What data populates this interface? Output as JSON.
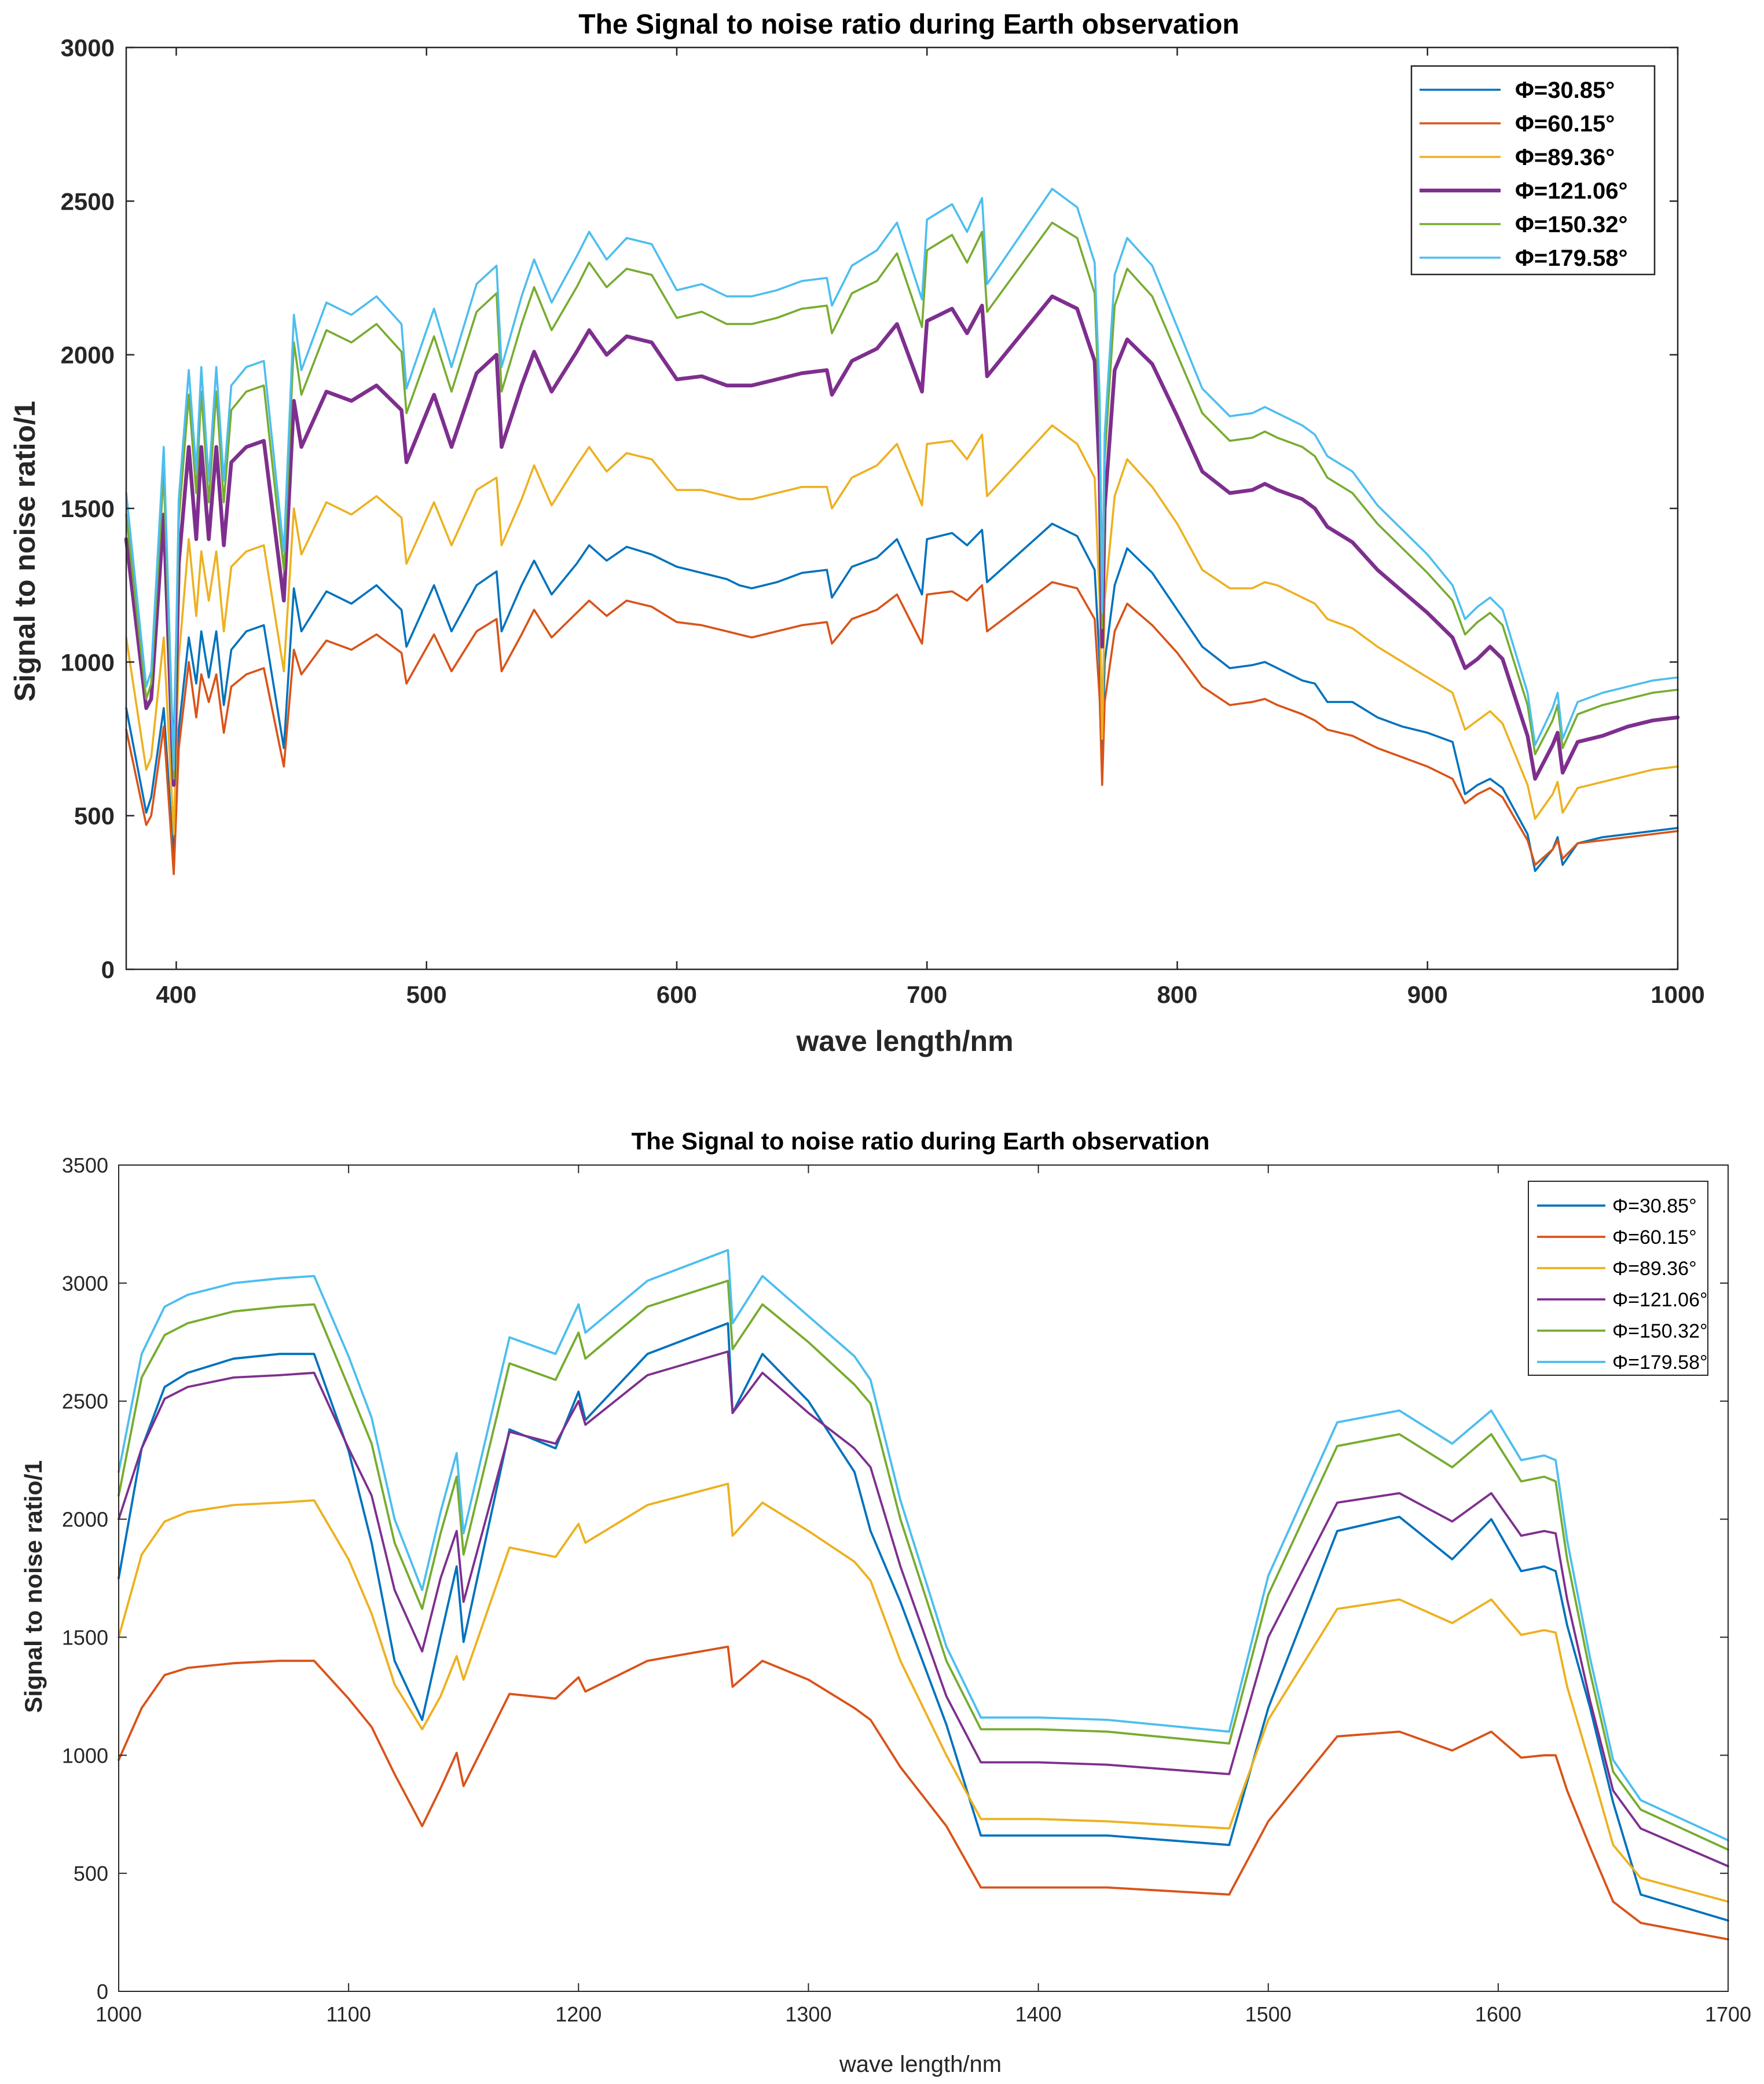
{
  "chart_data": [
    {
      "type": "line",
      "title": "The Signal to noise ratio during Earth observation",
      "xlabel": "wave length/nm",
      "ylabel": "Signal to noise ratio/1",
      "xlim": [
        380,
        1000
      ],
      "ylim": [
        0,
        3000
      ],
      "xticks": [
        400,
        500,
        600,
        700,
        800,
        900,
        1000
      ],
      "yticks": [
        0,
        500,
        1000,
        1500,
        2000,
        2500,
        3000
      ],
      "legend_position": "top-right",
      "x": [
        380,
        388,
        390,
        395,
        399,
        401,
        405,
        408,
        410,
        413,
        416,
        419,
        422,
        428,
        435,
        443,
        447,
        450,
        460,
        470,
        480,
        490,
        492,
        503,
        510,
        520,
        528,
        530,
        538,
        543,
        550,
        560,
        565,
        572,
        580,
        590,
        600,
        610,
        620,
        625,
        630,
        640,
        650,
        660,
        662,
        670,
        680,
        688,
        698,
        700,
        710,
        716,
        722,
        724,
        750,
        760,
        767,
        769,
        770,
        771,
        775,
        780,
        790,
        800,
        810,
        821,
        830,
        835,
        840,
        850,
        855,
        860,
        870,
        880,
        890,
        900,
        910,
        915,
        920,
        925,
        930,
        940,
        943,
        950,
        952,
        954,
        960,
        970,
        980,
        990,
        1000
      ],
      "series": [
        {
          "name": "Φ=30.85°",
          "color": "#0072BD",
          "values": [
            850,
            510,
            560,
            850,
            360,
            780,
            1080,
            930,
            1100,
            950,
            1100,
            860,
            1040,
            1100,
            1120,
            720,
            1240,
            1100,
            1230,
            1190,
            1250,
            1170,
            1050,
            1250,
            1100,
            1250,
            1295,
            1100,
            1250,
            1330,
            1220,
            1320,
            1380,
            1330,
            1375,
            1350,
            1310,
            1290,
            1270,
            1250,
            1240,
            1260,
            1290,
            1300,
            1210,
            1310,
            1340,
            1400,
            1220,
            1400,
            1420,
            1380,
            1430,
            1260,
            1450,
            1410,
            1300,
            1000,
            700,
            1000,
            1250,
            1370,
            1290,
            1170,
            1050,
            980,
            990,
            1000,
            980,
            940,
            930,
            870,
            870,
            820,
            790,
            770,
            740,
            570,
            600,
            620,
            590,
            440,
            320,
            390,
            430,
            340,
            410,
            430,
            440,
            450,
            460
          ]
        },
        {
          "name": "Φ=60.15°",
          "color": "#D95319",
          "values": [
            780,
            470,
            500,
            790,
            310,
            720,
            1000,
            820,
            960,
            870,
            960,
            770,
            920,
            960,
            980,
            660,
            1040,
            960,
            1070,
            1040,
            1090,
            1030,
            930,
            1090,
            970,
            1100,
            1140,
            970,
            1090,
            1170,
            1080,
            1160,
            1200,
            1150,
            1200,
            1180,
            1130,
            1120,
            1100,
            1090,
            1080,
            1100,
            1120,
            1130,
            1060,
            1140,
            1170,
            1220,
            1060,
            1220,
            1230,
            1200,
            1250,
            1100,
            1260,
            1240,
            1140,
            880,
            600,
            870,
            1100,
            1190,
            1120,
            1030,
            920,
            860,
            870,
            880,
            860,
            830,
            810,
            780,
            760,
            720,
            690,
            660,
            620,
            540,
            570,
            590,
            560,
            420,
            340,
            390,
            420,
            360,
            410,
            420,
            430,
            440,
            450
          ]
        },
        {
          "name": "Φ=89.36°",
          "color": "#EDB120",
          "values": [
            1080,
            650,
            690,
            1080,
            440,
            1010,
            1400,
            1150,
            1360,
            1200,
            1360,
            1100,
            1310,
            1360,
            1380,
            970,
            1500,
            1350,
            1520,
            1480,
            1540,
            1470,
            1320,
            1520,
            1380,
            1560,
            1600,
            1380,
            1530,
            1640,
            1510,
            1640,
            1700,
            1620,
            1680,
            1660,
            1560,
            1560,
            1540,
            1530,
            1530,
            1550,
            1570,
            1570,
            1500,
            1600,
            1640,
            1710,
            1510,
            1710,
            1720,
            1660,
            1740,
            1540,
            1770,
            1710,
            1600,
            1200,
            750,
            1200,
            1540,
            1660,
            1570,
            1450,
            1300,
            1240,
            1240,
            1260,
            1250,
            1210,
            1190,
            1140,
            1110,
            1050,
            1000,
            950,
            900,
            780,
            810,
            840,
            800,
            600,
            490,
            570,
            610,
            510,
            590,
            610,
            630,
            650,
            660
          ]
        },
        {
          "name": "Φ=121.06°",
          "color": "#7E2F8E",
          "values": [
            1400,
            850,
            880,
            1480,
            600,
            1320,
            1700,
            1400,
            1700,
            1400,
            1700,
            1380,
            1650,
            1700,
            1720,
            1200,
            1850,
            1700,
            1880,
            1850,
            1900,
            1820,
            1650,
            1870,
            1700,
            1940,
            2000,
            1700,
            1900,
            2010,
            1880,
            2010,
            2080,
            2000,
            2060,
            2040,
            1920,
            1930,
            1900,
            1900,
            1900,
            1920,
            1940,
            1950,
            1870,
            1980,
            2020,
            2100,
            1880,
            2110,
            2150,
            2070,
            2160,
            1930,
            2190,
            2150,
            1980,
            1600,
            1050,
            1500,
            1950,
            2050,
            1970,
            1800,
            1620,
            1550,
            1560,
            1580,
            1560,
            1530,
            1500,
            1440,
            1390,
            1300,
            1230,
            1160,
            1080,
            980,
            1010,
            1050,
            1010,
            760,
            620,
            730,
            770,
            640,
            740,
            760,
            790,
            810,
            820
          ]
        },
        {
          "name": "Φ=150.32°",
          "color": "#77AC30",
          "values": [
            1480,
            880,
            930,
            1620,
            620,
            1460,
            1870,
            1550,
            1880,
            1520,
            1880,
            1520,
            1820,
            1880,
            1900,
            1300,
            2040,
            1870,
            2080,
            2040,
            2100,
            2010,
            1810,
            2060,
            1880,
            2140,
            2200,
            1880,
            2100,
            2220,
            2080,
            2220,
            2300,
            2220,
            2280,
            2260,
            2120,
            2140,
            2100,
            2100,
            2100,
            2120,
            2150,
            2160,
            2070,
            2200,
            2240,
            2330,
            2090,
            2340,
            2390,
            2300,
            2400,
            2140,
            2430,
            2380,
            2200,
            1780,
            1110,
            1660,
            2160,
            2280,
            2190,
            2000,
            1810,
            1720,
            1730,
            1750,
            1730,
            1700,
            1670,
            1600,
            1550,
            1450,
            1370,
            1290,
            1200,
            1090,
            1130,
            1160,
            1120,
            860,
            700,
            810,
            860,
            720,
            830,
            860,
            880,
            900,
            910
          ]
        },
        {
          "name": "Φ=179.58°",
          "color": "#4DBEEE",
          "values": [
            1550,
            920,
            970,
            1700,
            650,
            1530,
            1950,
            1620,
            1960,
            1590,
            1960,
            1590,
            1900,
            1960,
            1980,
            1360,
            2130,
            1950,
            2170,
            2130,
            2190,
            2100,
            1890,
            2150,
            1960,
            2230,
            2290,
            1960,
            2190,
            2310,
            2170,
            2320,
            2400,
            2310,
            2380,
            2360,
            2210,
            2230,
            2190,
            2190,
            2190,
            2210,
            2240,
            2250,
            2160,
            2290,
            2340,
            2430,
            2180,
            2440,
            2490,
            2400,
            2510,
            2230,
            2540,
            2480,
            2300,
            1860,
            1160,
            1740,
            2260,
            2380,
            2290,
            2090,
            1890,
            1800,
            1810,
            1830,
            1810,
            1770,
            1740,
            1670,
            1620,
            1510,
            1430,
            1350,
            1250,
            1140,
            1180,
            1210,
            1170,
            900,
            730,
            850,
            900,
            750,
            870,
            900,
            920,
            940,
            950
          ]
        }
      ]
    },
    {
      "type": "line",
      "title": "The Signal to noise ratio during Earth observation",
      "xlabel": "wave length/nm",
      "ylabel": "Signal to noise ratio/1",
      "xlim": [
        1000,
        1700
      ],
      "ylim": [
        0,
        3500
      ],
      "xticks": [
        1000,
        1100,
        1200,
        1300,
        1400,
        1500,
        1600,
        1700
      ],
      "yticks": [
        0,
        500,
        1000,
        1500,
        2000,
        2500,
        3000,
        3500
      ],
      "legend_position": "top-right",
      "x": [
        1000,
        1010,
        1020,
        1030,
        1050,
        1070,
        1085,
        1100,
        1110,
        1120,
        1132,
        1140,
        1147,
        1150,
        1170,
        1190,
        1200,
        1203,
        1230,
        1265,
        1267,
        1280,
        1300,
        1320,
        1327,
        1340,
        1360,
        1375,
        1400,
        1430,
        1483,
        1500,
        1530,
        1557,
        1580,
        1597,
        1610,
        1620,
        1625,
        1630,
        1640,
        1650,
        1662,
        1700
      ],
      "series": [
        {
          "name": "Φ=30.85°",
          "color": "#0072BD",
          "values": [
            1750,
            2300,
            2560,
            2620,
            2680,
            2700,
            2700,
            2290,
            1900,
            1400,
            1150,
            1500,
            1800,
            1480,
            2380,
            2300,
            2540,
            2420,
            2700,
            2830,
            2450,
            2700,
            2500,
            2200,
            1950,
            1650,
            1130,
            660,
            660,
            660,
            620,
            1200,
            1950,
            2010,
            1830,
            2000,
            1780,
            1800,
            1780,
            1550,
            1200,
            800,
            410,
            300
          ]
        },
        {
          "name": "Φ=60.15°",
          "color": "#D95319",
          "values": [
            980,
            1200,
            1340,
            1370,
            1390,
            1400,
            1400,
            1240,
            1120,
            920,
            700,
            860,
            1010,
            870,
            1260,
            1240,
            1330,
            1270,
            1400,
            1460,
            1290,
            1400,
            1320,
            1200,
            1150,
            950,
            700,
            440,
            440,
            440,
            410,
            720,
            1080,
            1100,
            1020,
            1100,
            990,
            1000,
            1000,
            850,
            610,
            380,
            290,
            220
          ]
        },
        {
          "name": "Φ=89.36°",
          "color": "#EDB120",
          "values": [
            1500,
            1850,
            1990,
            2030,
            2060,
            2070,
            2080,
            1830,
            1600,
            1300,
            1110,
            1250,
            1420,
            1320,
            1880,
            1840,
            1980,
            1900,
            2060,
            2150,
            1930,
            2070,
            1950,
            1820,
            1740,
            1400,
            1000,
            730,
            730,
            720,
            690,
            1150,
            1620,
            1660,
            1560,
            1660,
            1510,
            1530,
            1520,
            1290,
            960,
            620,
            480,
            380
          ]
        },
        {
          "name": "Φ=121.06°",
          "color": "#7E2F8E",
          "values": [
            2000,
            2300,
            2510,
            2560,
            2600,
            2610,
            2620,
            2300,
            2100,
            1700,
            1440,
            1750,
            1950,
            1650,
            2370,
            2320,
            2500,
            2400,
            2610,
            2710,
            2450,
            2620,
            2450,
            2300,
            2220,
            1800,
            1250,
            970,
            970,
            960,
            920,
            1500,
            2070,
            2110,
            1990,
            2110,
            1930,
            1950,
            1940,
            1660,
            1230,
            850,
            690,
            530
          ]
        },
        {
          "name": "Φ=150.32°",
          "color": "#77AC30",
          "values": [
            2100,
            2600,
            2780,
            2830,
            2880,
            2900,
            2910,
            2560,
            2320,
            1900,
            1620,
            1940,
            2180,
            1850,
            2660,
            2590,
            2790,
            2680,
            2900,
            3010,
            2720,
            2910,
            2750,
            2570,
            2490,
            2000,
            1400,
            1110,
            1110,
            1100,
            1050,
            1680,
            2310,
            2360,
            2220,
            2360,
            2160,
            2180,
            2160,
            1830,
            1350,
            930,
            770,
            600
          ]
        },
        {
          "name": "Φ=179.58°",
          "color": "#4DBEEE",
          "values": [
            2200,
            2700,
            2900,
            2950,
            3000,
            3020,
            3030,
            2690,
            2430,
            2000,
            1700,
            2030,
            2280,
            1940,
            2770,
            2700,
            2910,
            2790,
            3010,
            3140,
            2830,
            3030,
            2860,
            2690,
            2590,
            2080,
            1460,
            1160,
            1160,
            1150,
            1100,
            1760,
            2410,
            2460,
            2320,
            2460,
            2250,
            2270,
            2250,
            1910,
            1410,
            980,
            810,
            640
          ]
        }
      ]
    }
  ]
}
